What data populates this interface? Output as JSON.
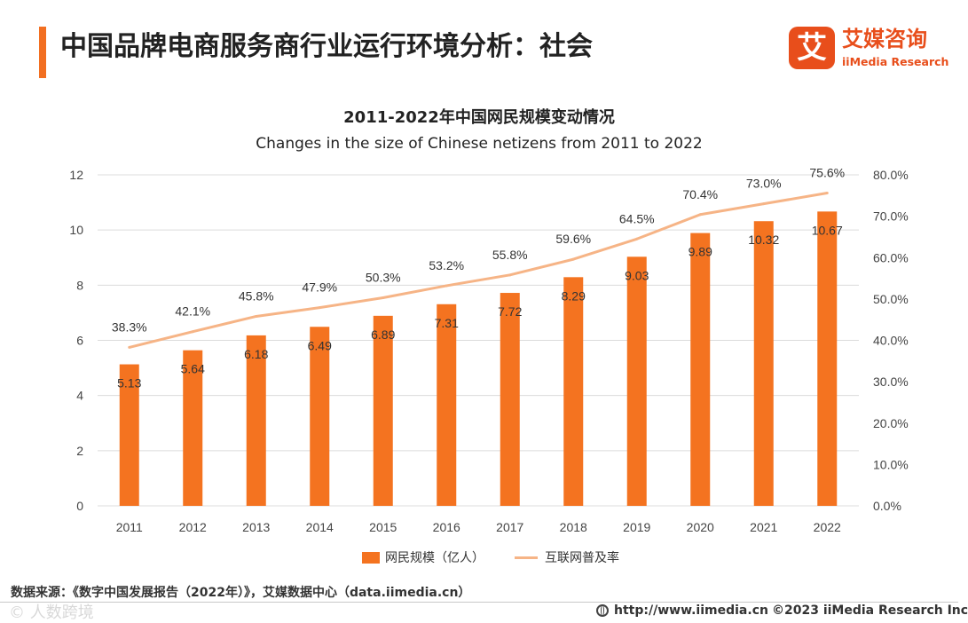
{
  "header": {
    "title": "中国品牌电商服务商行业运行环境分析：社会",
    "logo_mark": "艾",
    "logo_cn": "艾媒咨询",
    "logo_en": "iiMedia Research"
  },
  "chart_data": {
    "type": "bar+line",
    "title": "2011-2022年中国网民规模变动情况",
    "subtitle": "Changes in the size of Chinese netizens from 2011 to 2022",
    "categories": [
      "2011",
      "2012",
      "2013",
      "2014",
      "2015",
      "2016",
      "2017",
      "2018",
      "2019",
      "2020",
      "2021",
      "2022"
    ],
    "series": [
      {
        "name": "网民规模（亿人）",
        "type": "bar",
        "axis": "left",
        "color": "#f47320",
        "values": [
          5.13,
          5.64,
          6.18,
          6.49,
          6.89,
          7.31,
          7.72,
          8.29,
          9.03,
          9.89,
          10.32,
          10.67
        ],
        "labels": [
          "5.13",
          "5.64",
          "6.18",
          "6.49",
          "6.89",
          "7.31",
          "7.72",
          "8.29",
          "9.03",
          "9.89",
          "10.32",
          "10.67"
        ]
      },
      {
        "name": "互联网普及率",
        "type": "line",
        "axis": "right",
        "color": "#f6b486",
        "values": [
          38.3,
          42.1,
          45.8,
          47.9,
          50.3,
          53.2,
          55.8,
          59.6,
          64.5,
          70.4,
          73.0,
          75.6
        ],
        "labels": [
          "38.3%",
          "42.1%",
          "45.8%",
          "47.9%",
          "50.3%",
          "53.2%",
          "55.8%",
          "59.6%",
          "64.5%",
          "70.4%",
          "73.0%",
          "75.6%"
        ]
      }
    ],
    "y_left": {
      "ylim": [
        0,
        12
      ],
      "ticks": [
        "0",
        "2",
        "4",
        "6",
        "8",
        "10",
        "12"
      ],
      "tick_values": [
        0,
        2,
        4,
        6,
        8,
        10,
        12
      ]
    },
    "y_right": {
      "ylim": [
        0,
        80
      ],
      "ticks": [
        "0.0%",
        "10.0%",
        "20.0%",
        "30.0%",
        "40.0%",
        "50.0%",
        "60.0%",
        "70.0%",
        "80.0%"
      ],
      "tick_values": [
        0,
        10,
        20,
        30,
        40,
        50,
        60,
        70,
        80
      ]
    },
    "grid": true,
    "legend_position": "bottom"
  },
  "legend": {
    "bar_label": "网民规模（亿人）",
    "line_label": "互联网普及率"
  },
  "footer": {
    "source": "数据来源：《数字中国发展报告（2022年）》，艾媒数据中心（data.iimedia.cn）",
    "url": "http://www.iimedia.cn",
    "copyright": "©2023  iiMedia Research  Inc",
    "watermark": "© 人数跨境"
  }
}
